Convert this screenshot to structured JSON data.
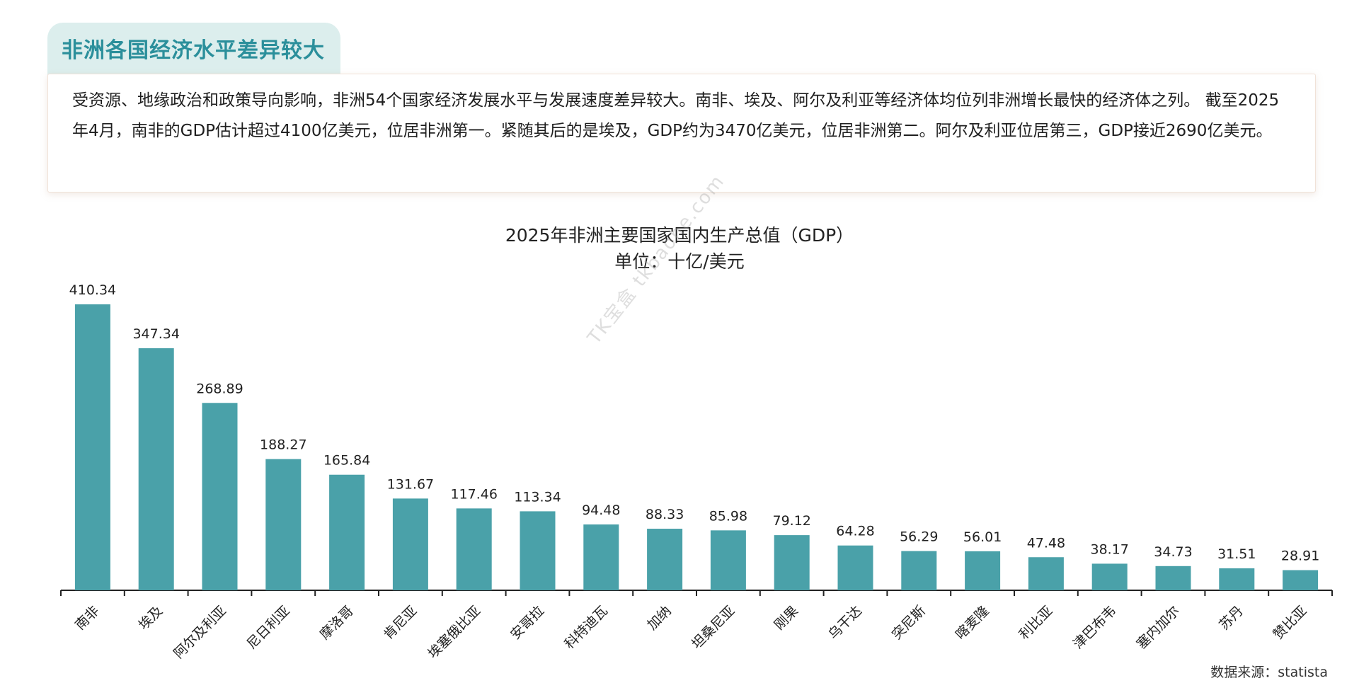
{
  "header": {
    "title": "非洲各国经济水平差异较大"
  },
  "summary": {
    "text": "受资源、地缘政治和政策导向影响，非洲54个国家经济发展水平与发展速度差异较大。南非、埃及、阿尔及利亚等经济体均位列非洲增长最快的经济体之列。 截至2025年4月，南非的GDP估计超过4100亿美元，位居非洲第一。紧随其后的是埃及，GDP约为3470亿美元，位居非洲第二。阿尔及利亚位居第三，GDP接近2690亿美元。"
  },
  "watermark": "TK宝盒 tkbaohe.com",
  "source": "数据来源：statista",
  "colors": {
    "bar": "#4aa1a9",
    "accent": "#2b8f9b",
    "header_bg": "#dceeed"
  },
  "chart_data": {
    "type": "bar",
    "title": "2025年非洲主要国家国内生产总值（GDP）",
    "subtitle": "单位：十亿/美元",
    "categories": [
      "南非",
      "埃及",
      "阿尔及利亚",
      "尼日利亚",
      "摩洛哥",
      "肯尼亚",
      "埃塞俄比亚",
      "安哥拉",
      "科特迪瓦",
      "加纳",
      "坦桑尼亚",
      "刚果",
      "乌干达",
      "突尼斯",
      "喀麦隆",
      "利比亚",
      "津巴布韦",
      "塞内加尔",
      "苏丹",
      "赞比亚"
    ],
    "values": [
      410.34,
      347.34,
      268.89,
      188.27,
      165.84,
      131.67,
      117.46,
      113.34,
      94.48,
      88.33,
      85.98,
      79.12,
      64.28,
      56.29,
      56.01,
      47.48,
      38.17,
      34.73,
      31.51,
      28.91
    ],
    "value_labels": [
      "410.34",
      "347.34",
      "268.89",
      "188.27",
      "165.84",
      "131.67",
      "117.46",
      "113.34",
      "94.48",
      "88.33",
      "85.98",
      "79.12",
      "64.28",
      "56.29",
      "56.01",
      "47.48",
      "38.17",
      "34.73",
      "31.51",
      "28.91"
    ],
    "ylim": [
      0,
      410.34
    ],
    "grid": false,
    "legend": "none"
  }
}
